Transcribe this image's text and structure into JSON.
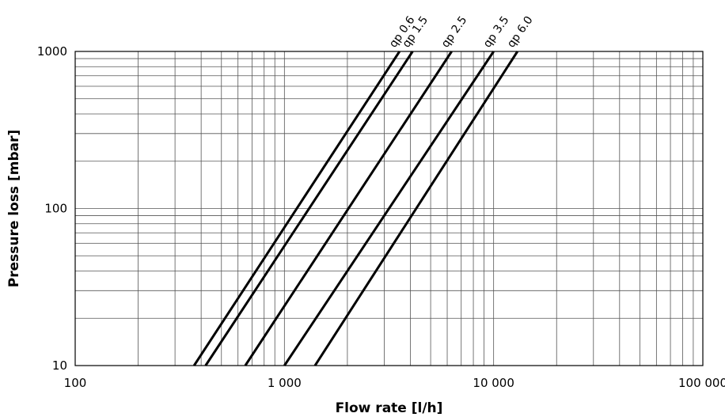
{
  "chart_data": {
    "type": "line",
    "xlabel": "Flow rate [l/h]",
    "ylabel": "Pressure loss [mbar]",
    "x_scale": "log",
    "y_scale": "log",
    "xlim": [
      100,
      100000
    ],
    "ylim": [
      10,
      1000
    ],
    "grid": true,
    "x_ticks": [
      {
        "value": 100,
        "label": "100"
      },
      {
        "value": 1000,
        "label": "1 000"
      },
      {
        "value": 10000,
        "label": "10 000"
      },
      {
        "value": 100000,
        "label": "100 000"
      }
    ],
    "y_ticks": [
      {
        "value": 10,
        "label": "10"
      },
      {
        "value": 100,
        "label": "100"
      },
      {
        "value": 1000,
        "label": "1000"
      }
    ],
    "series": [
      {
        "name": "qp 0.6",
        "x": [
          370,
          3550
        ],
        "y": [
          10,
          1000
        ]
      },
      {
        "name": "qp 1.5",
        "x": [
          420,
          4100
        ],
        "y": [
          10,
          1000
        ]
      },
      {
        "name": "qp 2.5",
        "x": [
          650,
          6300
        ],
        "y": [
          10,
          1000
        ]
      },
      {
        "name": "qp 3.5",
        "x": [
          1000,
          10000
        ],
        "y": [
          10,
          1000
        ]
      },
      {
        "name": "qp 6.0",
        "x": [
          1400,
          13000
        ],
        "y": [
          10,
          1000
        ]
      }
    ]
  }
}
